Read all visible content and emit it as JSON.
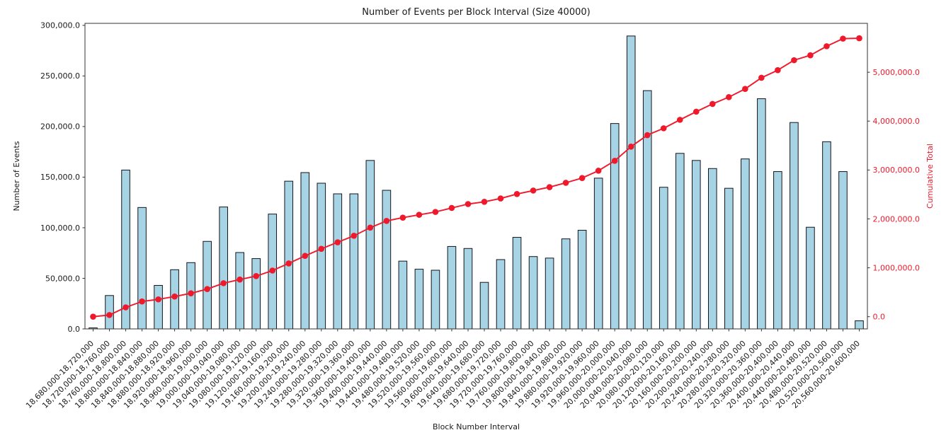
{
  "chart_data": {
    "type": "bar",
    "combo": "bar+line-dual-axis",
    "title": "Number of Events per Block Interval (Size 40000)",
    "xlabel": "Block Number Interval",
    "ylabel_left": "Number of Events",
    "ylabel_right": "Cumulative Total",
    "grid": false,
    "legend_position": "none",
    "background_color": "#ffffff",
    "text_color": "#1a1a1a",
    "spine_color": "#333333",
    "categories": [
      "18,680,000-18,720,000",
      "18,720,000-18,760,000",
      "18,760,000-18,800,000",
      "18,800,000-18,840,000",
      "18,840,000-18,880,000",
      "18,880,000-18,920,000",
      "18,920,000-18,960,000",
      "18,960,000-19,000,000",
      "19,000,000-19,040,000",
      "19,040,000-19,080,000",
      "19,080,000-19,120,000",
      "19,120,000-19,160,000",
      "19,160,000-19,200,000",
      "19,200,000-19,240,000",
      "19,240,000-19,280,000",
      "19,280,000-19,320,000",
      "19,320,000-19,360,000",
      "19,360,000-19,400,000",
      "19,400,000-19,440,000",
      "19,440,000-19,480,000",
      "19,480,000-19,520,000",
      "19,520,000-19,560,000",
      "19,560,000-19,600,000",
      "19,600,000-19,640,000",
      "19,640,000-19,680,000",
      "19,680,000-19,720,000",
      "19,720,000-19,760,000",
      "19,760,000-19,800,000",
      "19,800,000-19,840,000",
      "19,840,000-19,880,000",
      "19,880,000-19,920,000",
      "19,920,000-19,960,000",
      "19,960,000-20,000,000",
      "20,000,000-20,040,000",
      "20,040,000-20,080,000",
      "20,080,000-20,120,000",
      "20,120,000-20,160,000",
      "20,160,000-20,200,000",
      "20,200,000-20,240,000",
      "20,240,000-20,280,000",
      "20,280,000-20,320,000",
      "20,320,000-20,360,000",
      "20,360,000-20,400,000",
      "20,400,000-20,440,000",
      "20,440,000-20,480,000",
      "20,480,000-20,520,000",
      "20,520,000-20,560,000",
      "20,560,000-20,600,000"
    ],
    "series": [
      {
        "name": "Number of Events",
        "type": "bar",
        "axis": "left",
        "color": "#a6d4e4",
        "edge_color": "#14141c",
        "values": [
          1000,
          33000,
          157000,
          120000,
          43000,
          58500,
          65500,
          86500,
          120500,
          75500,
          69500,
          113500,
          146000,
          154500,
          144000,
          133500,
          133500,
          166500,
          137000,
          67000,
          59000,
          58000,
          81500,
          79500,
          46000,
          68500,
          90500,
          71500,
          70000,
          89000,
          97500,
          149000,
          203000,
          289500,
          235500,
          140000,
          173500,
          166500,
          158500,
          139000,
          168000,
          227500,
          155500,
          204000,
          100500,
          185000,
          155500,
          8000
        ]
      },
      {
        "name": "Cumulative Total",
        "type": "line",
        "axis": "right",
        "color": "#f0192b",
        "marker": "circle",
        "values": [
          1000,
          34000,
          191000,
          311000,
          354000,
          412500,
          478000,
          564500,
          685000,
          760500,
          830000,
          943500,
          1089500,
          1244000,
          1388000,
          1521500,
          1655000,
          1821500,
          1958500,
          2025500,
          2084500,
          2142500,
          2224000,
          2303500,
          2349500,
          2418000,
          2508500,
          2580000,
          2650000,
          2739000,
          2836500,
          2985500,
          3188500,
          3478000,
          3713500,
          3853500,
          4027000,
          4193500,
          4352000,
          4491000,
          4659000,
          4886500,
          5042000,
          5246000,
          5346500,
          5531500,
          5687000,
          5695000
        ]
      }
    ],
    "left_axis": {
      "range": [
        0,
        302000
      ],
      "ticks": [
        {
          "value": 0,
          "label": "0.0"
        },
        {
          "value": 50000,
          "label": "50,000.0"
        },
        {
          "value": 100000,
          "label": "100,000.0"
        },
        {
          "value": 150000,
          "label": "150,000.0"
        },
        {
          "value": 200000,
          "label": "200,000.0"
        },
        {
          "value": 250000,
          "label": "250,000.0"
        },
        {
          "value": 300000,
          "label": "300,000.0"
        }
      ]
    },
    "right_axis": {
      "range": [
        -250000,
        6000000
      ],
      "color": "#f0192b",
      "ticks": [
        {
          "value": 0,
          "label": "0.0"
        },
        {
          "value": 1000000,
          "label": "1,000,000.0"
        },
        {
          "value": 2000000,
          "label": "2,000,000.0"
        },
        {
          "value": 3000000,
          "label": "3,000,000.0"
        },
        {
          "value": 4000000,
          "label": "4,000,000.0"
        },
        {
          "value": 5000000,
          "label": "5,000,000.0"
        }
      ]
    }
  }
}
